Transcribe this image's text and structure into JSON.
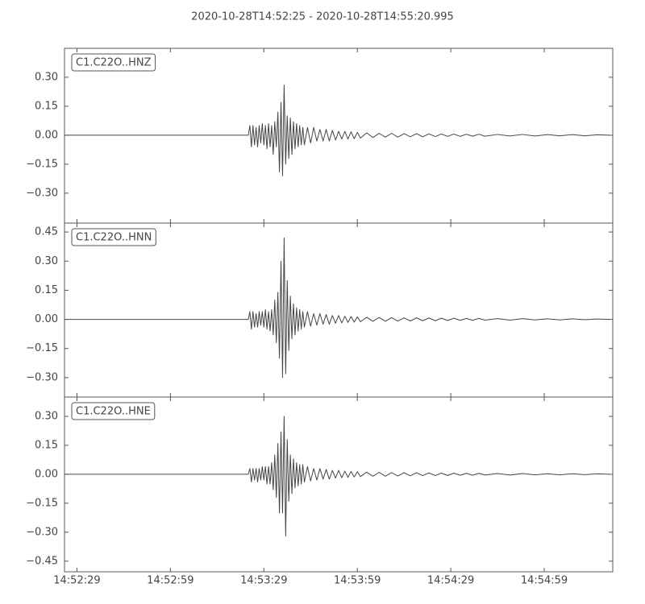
{
  "chart_data": [
    {
      "type": "line",
      "title": "2020-10-28T14:52:25  -  2020-10-28T14:55:20.995",
      "label": "C1.C22O..HNZ",
      "color": "#444444",
      "xlim": [
        "14:52:25",
        "14:55:20.995"
      ],
      "ylim": [
        -0.455,
        0.45
      ],
      "yticks": [
        {
          "value": 0.3,
          "label": "0.30"
        },
        {
          "value": 0.15,
          "label": "0.15"
        },
        {
          "value": 0,
          "label": "0.00"
        },
        {
          "value": -0.15,
          "label": "−0.15"
        },
        {
          "value": -0.3,
          "label": "−0.30"
        }
      ],
      "x": [
        "14:52:25",
        "14:53:24",
        "14:53:24.5",
        "14:53:25",
        "14:53:25.5",
        "14:53:26",
        "14:53:26.5",
        "14:53:27",
        "14:53:27.5",
        "14:53:28",
        "14:53:28.5",
        "14:53:29",
        "14:53:29.5",
        "14:53:30",
        "14:53:30.5",
        "14:53:31",
        "14:53:31.5",
        "14:53:32",
        "14:53:32.5",
        "14:53:33",
        "14:53:33.5",
        "14:53:34",
        "14:53:34.5",
        "14:53:35",
        "14:53:35.5",
        "14:53:36",
        "14:53:36.5",
        "14:53:37",
        "14:53:37.5",
        "14:53:38",
        "14:53:38.5",
        "14:53:39",
        "14:53:39.5",
        "14:53:40",
        "14:53:40.5",
        "14:53:41",
        "14:53:41.5",
        "14:53:42",
        "14:53:43",
        "14:53:44",
        "14:53:45",
        "14:53:46",
        "14:53:47",
        "14:53:48",
        "14:53:49",
        "14:53:50",
        "14:53:51",
        "14:53:52",
        "14:53:53",
        "14:53:54",
        "14:53:55",
        "14:53:56",
        "14:53:57",
        "14:53:58",
        "14:53:59",
        "14:54:00",
        "14:54:02",
        "14:54:04",
        "14:54:06",
        "14:54:08",
        "14:54:10",
        "14:54:12",
        "14:54:14",
        "14:54:16",
        "14:54:18",
        "14:54:20",
        "14:54:22",
        "14:54:24",
        "14:54:26",
        "14:54:28",
        "14:54:30",
        "14:54:32",
        "14:54:34",
        "14:54:36",
        "14:54:38",
        "14:54:40",
        "14:54:44",
        "14:54:48",
        "14:54:52",
        "14:54:56",
        "14:55:00",
        "14:55:04",
        "14:55:08",
        "14:55:12",
        "14:55:16",
        "14:55:20"
      ],
      "values": [
        0,
        0,
        0.05,
        -0.06,
        0.05,
        -0.05,
        0.04,
        -0.06,
        0.05,
        -0.04,
        0.06,
        -0.05,
        0.05,
        -0.07,
        0.06,
        -0.06,
        0.05,
        -0.1,
        0.07,
        -0.06,
        0.12,
        -0.19,
        0.17,
        -0.21,
        0.26,
        -0.15,
        0.1,
        -0.12,
        0.09,
        -0.1,
        0.07,
        -0.07,
        0.06,
        -0.06,
        0.05,
        -0.05,
        0.04,
        -0.05,
        0.04,
        -0.04,
        0.04,
        -0.03,
        0.03,
        -0.03,
        0.03,
        -0.03,
        0.025,
        -0.025,
        0.02,
        -0.02,
        0.02,
        -0.02,
        0.018,
        -0.018,
        0.015,
        -0.015,
        0.012,
        -0.012,
        0.01,
        -0.01,
        0.01,
        -0.01,
        0.008,
        -0.008,
        0.008,
        -0.008,
        0.007,
        -0.007,
        0.006,
        -0.006,
        0.006,
        -0.006,
        0.005,
        -0.005,
        0.005,
        -0.005,
        0.004,
        -0.004,
        0.004,
        -0.004,
        0.003,
        -0.003,
        0.003,
        -0.003,
        0.002,
        0
      ]
    },
    {
      "type": "line",
      "label": "C1.C22O..HNN",
      "color": "#444444",
      "xlim": [
        "14:52:25",
        "14:55:20.995"
      ],
      "ylim": [
        -0.4,
        0.496
      ],
      "yticks": [
        {
          "value": 0.45,
          "label": "0.45"
        },
        {
          "value": 0.3,
          "label": "0.30"
        },
        {
          "value": 0.15,
          "label": "0.15"
        },
        {
          "value": 0,
          "label": "0.00"
        },
        {
          "value": -0.15,
          "label": "−0.15"
        },
        {
          "value": -0.3,
          "label": "−0.30"
        }
      ],
      "x": [
        "14:52:25",
        "14:53:24",
        "14:53:24.5",
        "14:53:25",
        "14:53:25.5",
        "14:53:26",
        "14:53:26.5",
        "14:53:27",
        "14:53:27.5",
        "14:53:28",
        "14:53:28.5",
        "14:53:29",
        "14:53:29.5",
        "14:53:30",
        "14:53:30.5",
        "14:53:31",
        "14:53:31.5",
        "14:53:32",
        "14:53:32.5",
        "14:53:33",
        "14:53:33.5",
        "14:53:34",
        "14:53:34.5",
        "14:53:35",
        "14:53:35.5",
        "14:53:36",
        "14:53:36.5",
        "14:53:37",
        "14:53:37.5",
        "14:53:38",
        "14:53:38.5",
        "14:53:39",
        "14:53:39.5",
        "14:53:40",
        "14:53:40.5",
        "14:53:41",
        "14:53:41.5",
        "14:53:42",
        "14:53:43",
        "14:53:44",
        "14:53:45",
        "14:53:46",
        "14:53:47",
        "14:53:48",
        "14:53:49",
        "14:53:50",
        "14:53:51",
        "14:53:52",
        "14:53:53",
        "14:53:54",
        "14:53:55",
        "14:53:56",
        "14:53:57",
        "14:53:58",
        "14:53:59",
        "14:54:00",
        "14:54:02",
        "14:54:04",
        "14:54:06",
        "14:54:08",
        "14:54:10",
        "14:54:12",
        "14:54:14",
        "14:54:16",
        "14:54:18",
        "14:54:20",
        "14:54:22",
        "14:54:24",
        "14:54:26",
        "14:54:28",
        "14:54:30",
        "14:54:32",
        "14:54:34",
        "14:54:36",
        "14:54:38",
        "14:54:40",
        "14:54:44",
        "14:54:48",
        "14:54:52",
        "14:54:56",
        "14:55:00",
        "14:55:04",
        "14:55:08",
        "14:55:12",
        "14:55:16",
        "14:55:20"
      ],
      "values": [
        0,
        0,
        0.04,
        -0.05,
        0.04,
        -0.04,
        0.03,
        -0.04,
        0.04,
        -0.03,
        0.04,
        -0.04,
        0.05,
        -0.05,
        0.04,
        -0.06,
        0.05,
        -0.08,
        0.1,
        -0.12,
        0.14,
        -0.2,
        0.3,
        -0.3,
        0.42,
        -0.28,
        0.2,
        -0.16,
        0.12,
        -0.1,
        0.08,
        -0.08,
        0.06,
        -0.06,
        0.05,
        -0.05,
        0.04,
        -0.04,
        0.04,
        -0.035,
        0.03,
        -0.03,
        0.03,
        -0.025,
        0.025,
        -0.025,
        0.02,
        -0.02,
        0.02,
        -0.018,
        0.016,
        -0.016,
        0.015,
        -0.014,
        0.013,
        -0.012,
        0.011,
        -0.01,
        0.01,
        -0.01,
        0.009,
        -0.009,
        0.008,
        -0.008,
        0.008,
        -0.007,
        0.007,
        -0.007,
        0.006,
        -0.006,
        0.006,
        -0.005,
        0.005,
        -0.005,
        0.005,
        -0.004,
        0.004,
        -0.004,
        0.004,
        -0.003,
        0.003,
        -0.003,
        0.003,
        -0.002,
        0.002,
        0
      ]
    },
    {
      "type": "line",
      "label": "C1.C22O..HNE",
      "color": "#444444",
      "xlim": [
        "14:52:25",
        "14:55:20.995"
      ],
      "ylim": [
        -0.505,
        0.4
      ],
      "yticks": [
        {
          "value": 0.3,
          "label": "0.30"
        },
        {
          "value": 0.15,
          "label": "0.15"
        },
        {
          "value": 0,
          "label": "0.00"
        },
        {
          "value": -0.15,
          "label": "−0.15"
        },
        {
          "value": -0.3,
          "label": "−0.30"
        },
        {
          "value": -0.45,
          "label": "−0.45"
        }
      ],
      "xticks": [
        "14:52:29",
        "14:52:59",
        "14:53:29",
        "14:53:59",
        "14:54:29",
        "14:54:59"
      ],
      "x": [
        "14:52:25",
        "14:53:24",
        "14:53:24.5",
        "14:53:25",
        "14:53:25.5",
        "14:53:26",
        "14:53:26.5",
        "14:53:27",
        "14:53:27.5",
        "14:53:28",
        "14:53:28.5",
        "14:53:29",
        "14:53:29.5",
        "14:53:30",
        "14:53:30.5",
        "14:53:31",
        "14:53:31.5",
        "14:53:32",
        "14:53:32.5",
        "14:53:33",
        "14:53:33.5",
        "14:53:34",
        "14:53:34.5",
        "14:53:35",
        "14:53:35.5",
        "14:53:36",
        "14:53:36.5",
        "14:53:37",
        "14:53:37.5",
        "14:53:38",
        "14:53:38.5",
        "14:53:39",
        "14:53:39.5",
        "14:53:40",
        "14:53:40.5",
        "14:53:41",
        "14:53:41.5",
        "14:53:42",
        "14:53:43",
        "14:53:44",
        "14:53:45",
        "14:53:46",
        "14:53:47",
        "14:53:48",
        "14:53:49",
        "14:53:50",
        "14:53:51",
        "14:53:52",
        "14:53:53",
        "14:53:54",
        "14:53:55",
        "14:53:56",
        "14:53:57",
        "14:53:58",
        "14:53:59",
        "14:54:00",
        "14:54:02",
        "14:54:04",
        "14:54:06",
        "14:54:08",
        "14:54:10",
        "14:54:12",
        "14:54:14",
        "14:54:16",
        "14:54:18",
        "14:54:20",
        "14:54:22",
        "14:54:24",
        "14:54:26",
        "14:54:28",
        "14:54:30",
        "14:54:32",
        "14:54:34",
        "14:54:36",
        "14:54:38",
        "14:54:40",
        "14:54:44",
        "14:54:48",
        "14:54:52",
        "14:54:56",
        "14:55:00",
        "14:55:04",
        "14:55:08",
        "14:55:12",
        "14:55:16",
        "14:55:20"
      ],
      "values": [
        0,
        0,
        0.03,
        -0.04,
        0.03,
        -0.03,
        0.03,
        -0.04,
        0.03,
        -0.03,
        0.04,
        -0.03,
        0.04,
        -0.05,
        0.04,
        -0.05,
        0.06,
        -0.08,
        0.1,
        -0.12,
        0.16,
        -0.2,
        0.22,
        -0.2,
        0.3,
        -0.32,
        0.18,
        -0.14,
        0.1,
        -0.1,
        0.08,
        -0.07,
        0.06,
        -0.06,
        0.05,
        -0.05,
        0.05,
        -0.04,
        0.04,
        -0.035,
        0.03,
        -0.03,
        0.03,
        -0.025,
        0.025,
        -0.025,
        0.02,
        -0.02,
        0.02,
        -0.018,
        0.016,
        -0.016,
        0.015,
        -0.014,
        0.013,
        -0.012,
        0.011,
        -0.01,
        0.01,
        -0.01,
        0.009,
        -0.009,
        0.008,
        -0.008,
        0.008,
        -0.007,
        0.007,
        -0.007,
        0.006,
        -0.006,
        0.006,
        -0.005,
        0.005,
        -0.005,
        0.005,
        -0.004,
        0.004,
        -0.004,
        0.004,
        -0.003,
        0.003,
        -0.003,
        0.003,
        -0.002,
        0.002,
        0
      ]
    }
  ]
}
